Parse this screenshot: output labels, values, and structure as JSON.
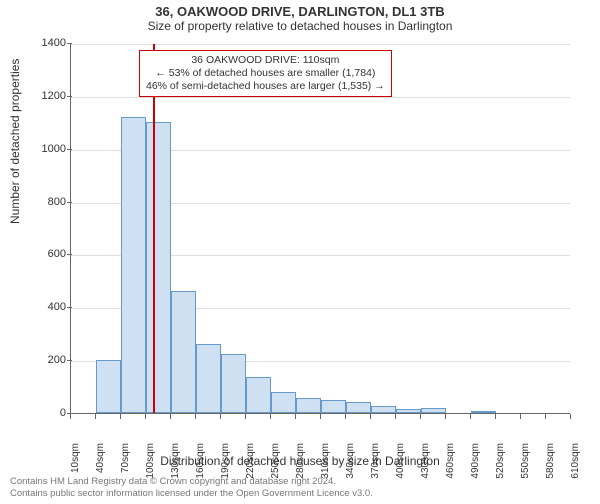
{
  "title": "36, OAKWOOD DRIVE, DARLINGTON, DL1 3TB",
  "subtitle": "Size of property relative to detached houses in Darlington",
  "ylabel": "Number of detached properties",
  "xlabel": "Distribution of detached houses by size in Darlington",
  "footer_line1": "Contains HM Land Registry data © Crown copyright and database right 2024.",
  "footer_line2": "Contains public sector information licensed under the Open Government Licence v3.0.",
  "callout": {
    "line1": "36 OAKWOOD DRIVE: 110sqm",
    "line2": "← 53% of detached houses are smaller (1,784)",
    "line3": "46% of semi-detached houses are larger (1,535) →"
  },
  "chart": {
    "type": "histogram",
    "background_color": "#ffffff",
    "grid_color": "#dddddd",
    "axis_color": "#666666",
    "bar_fill": "#cfe0f3",
    "bar_stroke": "#6699cc",
    "highlight_color": "#cc0000",
    "highlight_x": 110,
    "xlim": [
      10,
      610
    ],
    "ylim": [
      0,
      1400
    ],
    "ytick_step": 200,
    "bin_width": 30,
    "xticks": [
      10,
      40,
      70,
      100,
      130,
      160,
      190,
      220,
      250,
      280,
      310,
      340,
      370,
      400,
      430,
      460,
      490,
      520,
      550,
      580,
      610
    ],
    "xtick_labels": [
      "10sqm",
      "40sqm",
      "70sqm",
      "100sqm",
      "130sqm",
      "160sqm",
      "190sqm",
      "220sqm",
      "250sqm",
      "280sqm",
      "310sqm",
      "340sqm",
      "370sqm",
      "400sqm",
      "430sqm",
      "460sqm",
      "490sqm",
      "520sqm",
      "550sqm",
      "580sqm",
      "610sqm"
    ],
    "values": [
      0,
      200,
      1120,
      1100,
      460,
      260,
      225,
      135,
      80,
      55,
      50,
      40,
      25,
      15,
      20,
      0,
      5,
      0,
      0,
      0
    ],
    "title_fontsize": 13,
    "label_fontsize": 12,
    "tick_fontsize": 10
  }
}
